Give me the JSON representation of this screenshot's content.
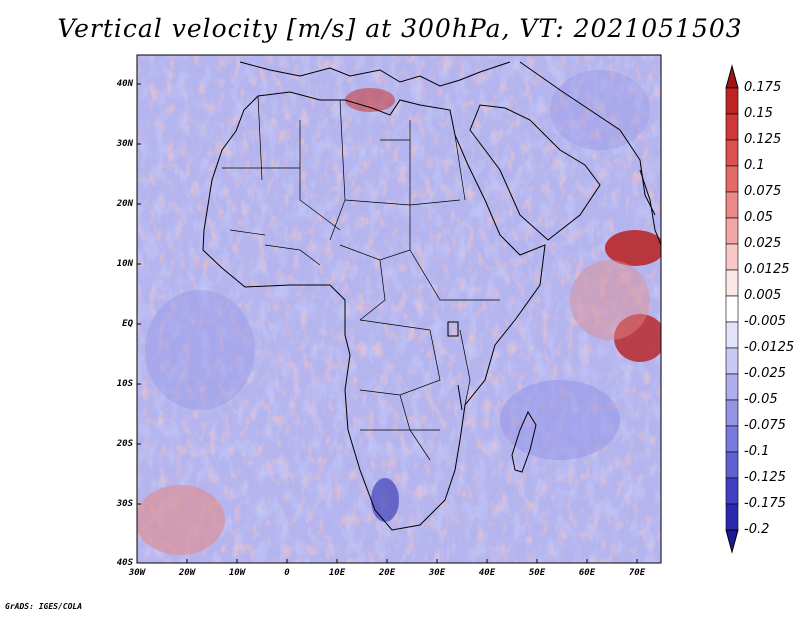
{
  "title": "Vertical velocity [m/s] at 300hPa, VT: 2021051503",
  "credit": "GrADS: IGES/COLA",
  "map": {
    "lon_range": [
      -30,
      75
    ],
    "lat_range": [
      -40,
      45
    ],
    "lat_labels": [
      "40N",
      "30N",
      "20N",
      "10N",
      "EQ",
      "10S",
      "20S",
      "30S",
      "40S"
    ],
    "lon_labels": [
      "30W",
      "20W",
      "10W",
      "0",
      "10E",
      "20E",
      "30E",
      "40E",
      "50E",
      "60E",
      "70E"
    ],
    "field_colors": {
      "ascent": "#e08a8a",
      "descent": "#8f8fe6",
      "strong_ascent": "#b82020",
      "strong_descent": "#3030b0",
      "coastline": "#000000"
    }
  },
  "colorbar": {
    "labels": [
      "0.175",
      "0.15",
      "0.125",
      "0.1",
      "0.075",
      "0.05",
      "0.025",
      "0.0125",
      "0.005",
      "-0.005",
      "-0.0125",
      "-0.025",
      "-0.05",
      "-0.075",
      "-0.1",
      "-0.125",
      "-0.175",
      "-0.2"
    ],
    "colors": [
      "#a01414",
      "#c02424",
      "#d03838",
      "#dc5050",
      "#e46a6a",
      "#ec8888",
      "#f2a6a6",
      "#f8c8c8",
      "#fce6e6",
      "#ffffff",
      "#e2e2fa",
      "#c8c8f4",
      "#aeaeee",
      "#9494e6",
      "#7a7ade",
      "#6060d2",
      "#4040c2",
      "#2a2aae",
      "#1c1c96"
    ]
  }
}
